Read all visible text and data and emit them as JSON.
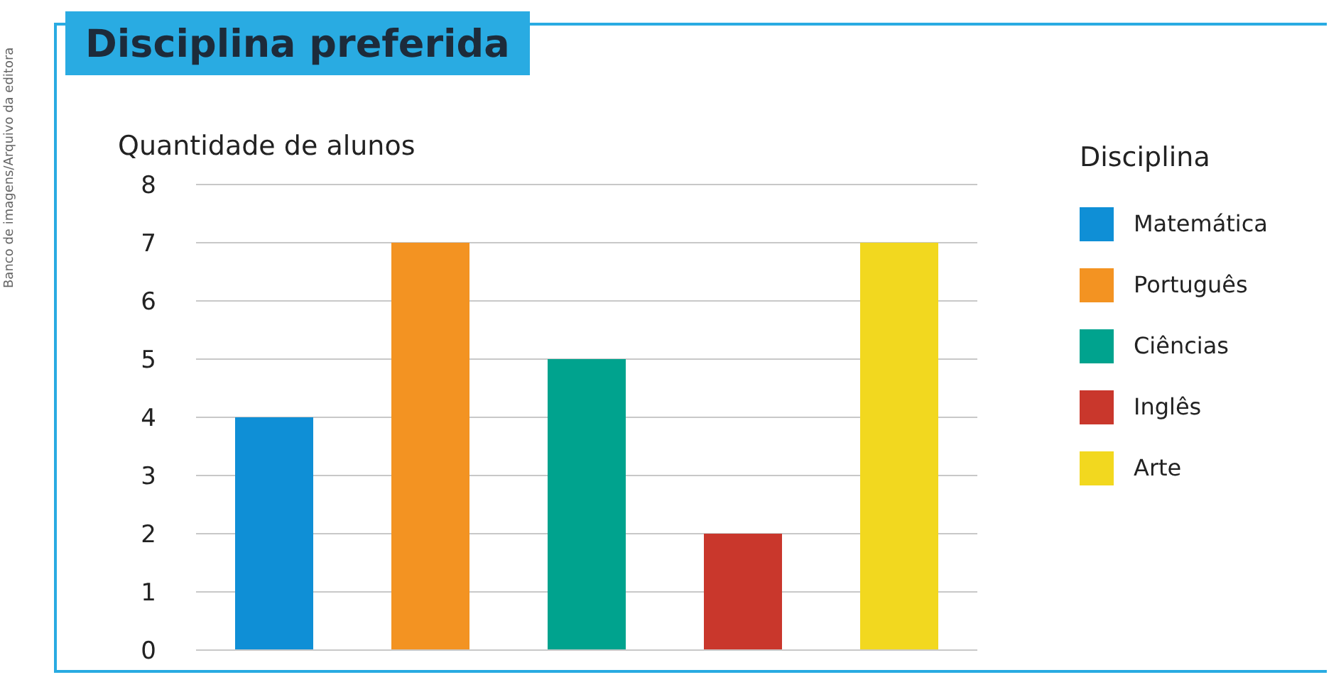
{
  "chart_data": {
    "type": "bar",
    "title": "Disciplina preferida",
    "ylabel": "Quantidade de alunos",
    "legend_title": "Disciplina",
    "annotations": [
      "Banco de imagens/Arquivo da editora"
    ],
    "categories": [
      null,
      null,
      null,
      null,
      null
    ],
    "stacked": true,
    "series": [
      {
        "name": "Matemática",
        "color": "#0f8fd6",
        "values": [
          4,
          null,
          null,
          null,
          null
        ]
      },
      {
        "name": "Português",
        "color": "#f39322",
        "values": [
          null,
          7,
          null,
          null,
          null
        ]
      },
      {
        "name": "Ciências",
        "color": "#00a38e",
        "values": [
          null,
          null,
          5,
          null,
          null
        ]
      },
      {
        "name": "Inglês",
        "color": "#c9372c",
        "values": [
          null,
          null,
          null,
          2,
          null
        ]
      },
      {
        "name": "Arte",
        "color": "#f2d81f",
        "values": [
          null,
          null,
          null,
          null,
          7
        ]
      }
    ],
    "ylim": [
      0,
      8
    ],
    "yticks": [
      0,
      1,
      2,
      3,
      4,
      5,
      6,
      7,
      8
    ],
    "grid": "y",
    "legend": "right"
  }
}
